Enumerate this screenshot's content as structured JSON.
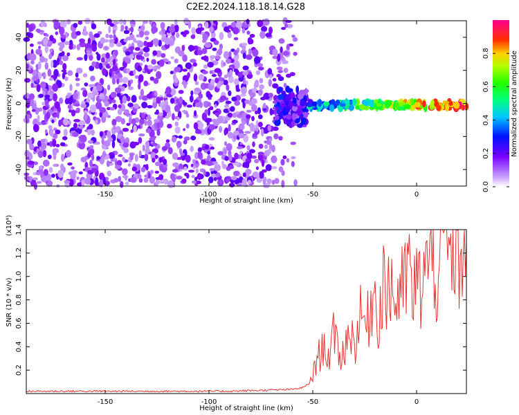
{
  "figure_title": "C2E2.2024.118.18.14.G28",
  "colors": {
    "line": "#e8322e",
    "axis": "#000000",
    "background": "#ffffff"
  },
  "chart_data": [
    {
      "type": "heatmap",
      "xlabel": "Height of straight line (km)",
      "ylabel": "Frequency (Hz)",
      "xlim": [
        -188,
        24
      ],
      "ylim": [
        -50,
        50
      ],
      "x_ticks": [
        -150,
        -100,
        -50,
        0
      ],
      "x_tick_labels": [
        "-150",
        "-100",
        "-50",
        "0"
      ],
      "y_ticks": [
        -40,
        -20,
        0,
        20,
        40
      ],
      "y_tick_labels": [
        "-40",
        "-20",
        "0",
        "20",
        "40"
      ],
      "grid": false,
      "colorbar": {
        "label": "Normalized spectral amplitude",
        "range": [
          0,
          1
        ],
        "ticks": [
          0.0,
          0.2,
          0.4,
          0.6,
          0.8
        ],
        "tick_labels": [
          "0.0",
          "0.2",
          "0.4",
          "0.6",
          "0.8"
        ],
        "colormap": "rainbow (white-violet-blue-cyan-green-yellow-red-magenta)"
      },
      "description_regions": [
        {
          "x_range": [
            -188,
            -58
          ],
          "freq_range": [
            -50,
            50
          ],
          "amplitude": 0.1,
          "pattern": "broadband noise"
        },
        {
          "x_range": [
            -68,
            -53
          ],
          "freq_range": [
            -15,
            12
          ],
          "amplitude": 0.25,
          "pattern": "transition"
        },
        {
          "x_range": [
            -53,
            24
          ],
          "freq_range": [
            -3,
            3
          ],
          "amplitude": 0.75,
          "pattern": "narrow carrier near 0 Hz"
        }
      ]
    },
    {
      "type": "line",
      "xlabel": "Height of straight line (km)",
      "ylabel": "SNR (10 * v/v)",
      "y_scale_label": "(x10⁴)",
      "xlim": [
        -188,
        24
      ],
      "ylim": [
        0,
        1.4
      ],
      "x_ticks": [
        -150,
        -100,
        -50,
        0
      ],
      "x_tick_labels": [
        "-150",
        "-100",
        "-50",
        "0"
      ],
      "y_ticks": [
        0.2,
        0.4,
        0.6,
        0.8,
        1.0,
        1.2,
        1.4
      ],
      "y_tick_labels": [
        "0.2",
        "0.4",
        "0.6",
        "0.8",
        "1.0",
        "1.2",
        "1.4"
      ],
      "grid": false,
      "series": [
        {
          "color": "#e8322e",
          "x": [
            -188,
            -180,
            -170,
            -160,
            -150,
            -140,
            -130,
            -120,
            -110,
            -100,
            -90,
            -80,
            -70,
            -60,
            -55,
            -52,
            -50,
            -48,
            -46,
            -44,
            -42,
            -40,
            -38,
            -36,
            -34,
            -32,
            -30,
            -28,
            -26,
            -24,
            -22,
            -20,
            -18,
            -16,
            -14,
            -12,
            -10,
            -8,
            -6,
            -4,
            -2,
            0,
            2,
            4,
            6,
            8,
            10,
            12,
            14,
            16,
            18,
            20,
            22,
            24
          ],
          "y": [
            0.02,
            0.02,
            0.02,
            0.02,
            0.02,
            0.02,
            0.02,
            0.02,
            0.02,
            0.02,
            0.02,
            0.025,
            0.03,
            0.035,
            0.05,
            0.08,
            0.15,
            0.3,
            0.35,
            0.42,
            0.3,
            0.48,
            0.4,
            0.3,
            0.45,
            0.55,
            0.4,
            0.6,
            0.68,
            0.55,
            0.8,
            0.85,
            0.62,
            1.05,
            0.75,
            1.0,
            0.72,
            0.95,
            0.85,
            1.15,
            0.78,
            0.95,
            0.9,
            1.12,
            1.05,
            1.2,
            0.95,
            1.28,
            1.38,
            1.1,
            1.32,
            1.15,
            1.2,
            1.3
          ]
        }
      ]
    }
  ]
}
